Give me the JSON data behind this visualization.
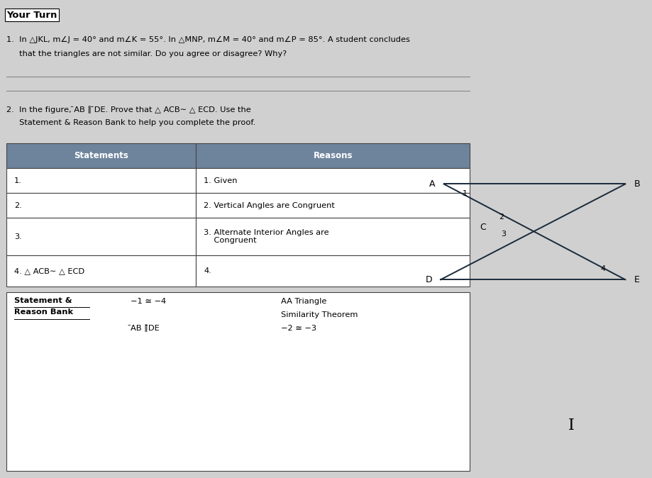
{
  "title": "Your Turn",
  "bg_color": "#d0d0d0",
  "white": "#ffffff",
  "q1_text_line1": "1.  In △JKL, m∠J = 40° and m∠K = 55°. In △MNP, m∠M = 40° and m∠P = 85°. A student concludes",
  "q1_text_line2": "     that the triangles are not similar. Do you agree or disagree? Why?",
  "q2_line1": "2.  In the figure, ̄AB ∥ ̄DE. Prove that △ ACB∼ △ ECD. Use the",
  "q2_line2": "     Statement & Reason Bank to help you complete the proof.",
  "table_header_bg": "#6e849c",
  "table_header_text": "#ffffff",
  "table_row_bg": "#ffffff",
  "table_border": "#444444",
  "statements_col": "Statements",
  "reasons_col": "Reasons",
  "rows": [
    {
      "stmt": "1.",
      "reason": "1. Given"
    },
    {
      "stmt": "2.",
      "reason": "2. Vertical Angles are Congruent"
    },
    {
      "stmt": "3.",
      "reason": "3. Alternate Interior Angles are\n    Congruent"
    },
    {
      "stmt": "4. △ ACB∼ △ ECD",
      "reason": "4."
    }
  ],
  "bank_title_line1": "Statement &",
  "bank_title_line2": "Reason Bank",
  "bank_item1_col1": "−1 ≅ −4",
  "bank_item1_col2_line1": "AA Triangle",
  "bank_item1_col2_line2": "Similarity Theorem",
  "bank_item2_col1": "̄AB ∥̄DE",
  "bank_item2_col2": "−2 ≅ −3",
  "cursor_symbol": "I"
}
